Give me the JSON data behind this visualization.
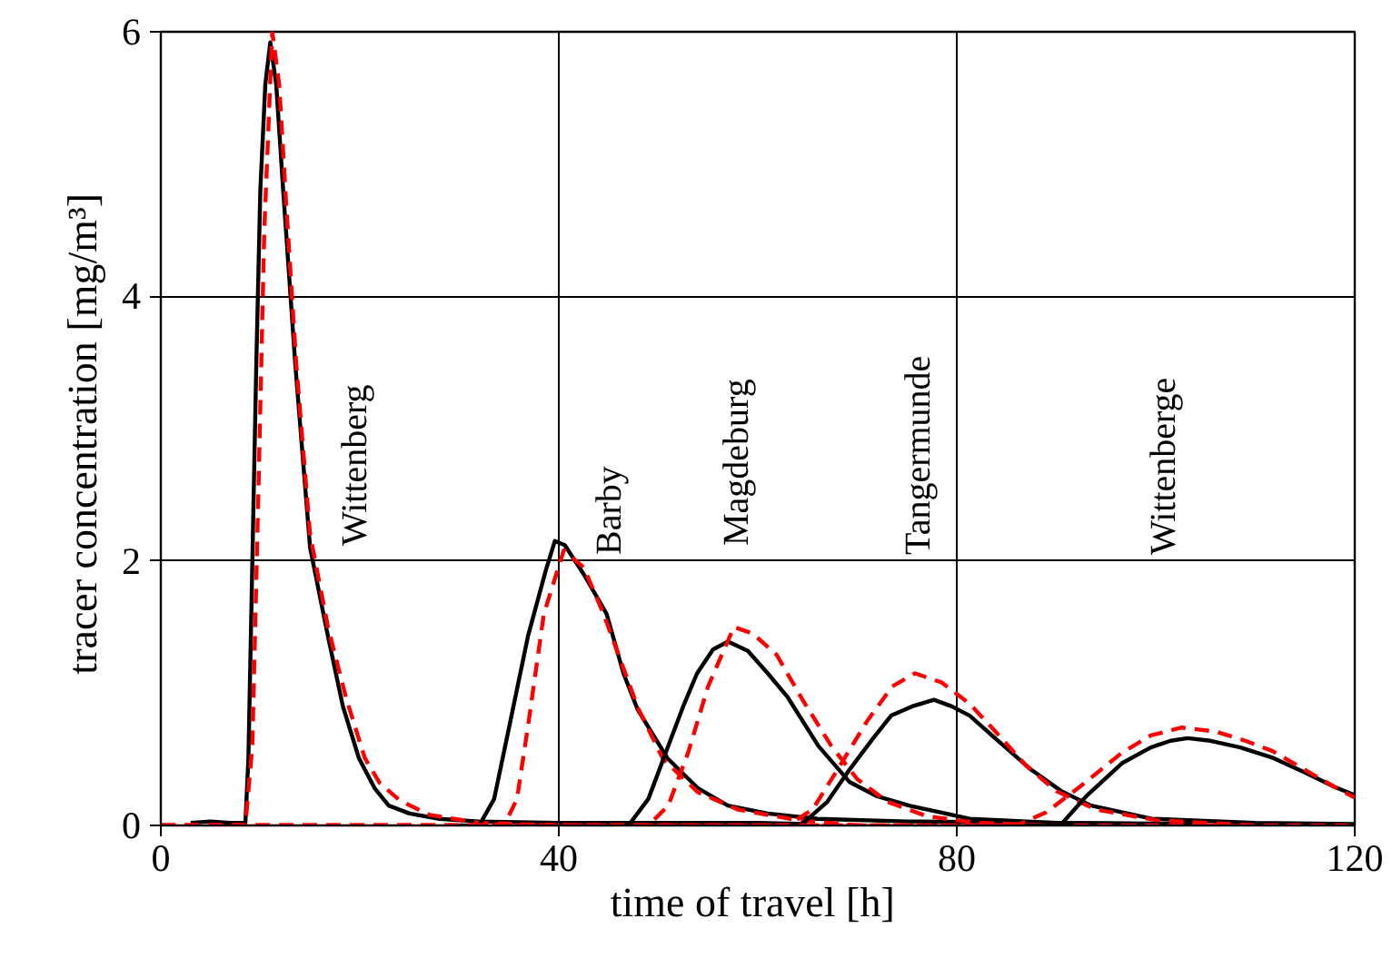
{
  "chart_data": {
    "type": "line",
    "xlabel": "time of travel  [h]",
    "ylabel": "tracer concentration  [mg/m³]",
    "xlim": [
      0,
      120
    ],
    "ylim": [
      0,
      6
    ],
    "xticks": [
      0,
      40,
      80,
      120
    ],
    "yticks": [
      0,
      2,
      4,
      6
    ],
    "grid": true,
    "marker": "none",
    "series": [
      {
        "color": "#000000",
        "line_style": "solid",
        "x": [
          3,
          5,
          7,
          8.5,
          8.8,
          9.2,
          9.6,
          10.0,
          10.5,
          11.0,
          11.6,
          12.3,
          13.5,
          15.0,
          16.8,
          18.3,
          19.9,
          21.5,
          22.9,
          25,
          28,
          32,
          40,
          50,
          60,
          65
        ],
        "values": [
          0.02,
          0.03,
          0.02,
          0.02,
          0.5,
          2.0,
          3.5,
          4.8,
          5.6,
          5.92,
          5.6,
          4.8,
          3.5,
          2.1,
          1.43,
          0.9,
          0.51,
          0.28,
          0.15,
          0.09,
          0.05,
          0.03,
          0.02,
          0.02,
          0.02,
          0.01
        ]
      },
      {
        "color": "#ff0000",
        "line_style": "dashed",
        "x": [
          0,
          8.5,
          9.2,
          9.8,
          10.4,
          11.2,
          11.9,
          12.6,
          13.6,
          15.0,
          16.8,
          18.6,
          20.5,
          22,
          24,
          27,
          32,
          40,
          60,
          120
        ],
        "values": [
          0,
          0,
          0.6,
          2.5,
          4.5,
          6.0,
          5.6,
          4.7,
          3.5,
          2.2,
          1.5,
          0.97,
          0.51,
          0.32,
          0.19,
          0.08,
          0.02,
          0,
          0,
          0
        ]
      },
      {
        "color": "#000000",
        "line_style": "solid",
        "x": [
          30,
          32,
          33.5,
          35,
          36.9,
          38.7,
          39.6,
          40.6,
          42.5,
          44.8,
          46.5,
          47.9,
          50.9,
          54,
          57,
          61,
          66,
          75,
          90,
          100
        ],
        "values": [
          0,
          0,
          0.2,
          0.74,
          1.43,
          1.93,
          2.15,
          2.12,
          1.9,
          1.6,
          1.15,
          0.88,
          0.51,
          0.28,
          0.15,
          0.09,
          0.05,
          0.03,
          0.02,
          0.01
        ]
      },
      {
        "color": "#ff0000",
        "line_style": "dashed",
        "x": [
          0,
          34.5,
          35.8,
          37,
          38.5,
          40.5,
          42.5,
          44.5,
          46,
          48,
          50.5,
          54,
          58,
          64,
          70,
          120
        ],
        "values": [
          0,
          0,
          0.2,
          0.8,
          1.6,
          2.08,
          1.95,
          1.6,
          1.29,
          0.88,
          0.5,
          0.25,
          0.12,
          0.04,
          0,
          0
        ]
      },
      {
        "color": "#000000",
        "line_style": "solid",
        "x": [
          45,
          47,
          49,
          51,
          52.5,
          53.9,
          55.5,
          57,
          59,
          61,
          63,
          66.1,
          69.2,
          72,
          75.2,
          81.3,
          90,
          105
        ],
        "values": [
          0,
          0,
          0.2,
          0.6,
          0.9,
          1.15,
          1.33,
          1.39,
          1.32,
          1.15,
          0.97,
          0.6,
          0.33,
          0.22,
          0.15,
          0.05,
          0.02,
          0.01
        ]
      },
      {
        "color": "#ff0000",
        "line_style": "dashed",
        "x": [
          0,
          49,
          51,
          53,
          55,
          57.6,
          59.5,
          61.9,
          64.5,
          67.4,
          70,
          73,
          77,
          82,
          90,
          120
        ],
        "values": [
          0,
          0,
          0.15,
          0.55,
          1.05,
          1.5,
          1.45,
          1.29,
          0.95,
          0.6,
          0.35,
          0.18,
          0.07,
          0.02,
          0,
          0
        ]
      },
      {
        "color": "#000000",
        "line_style": "solid",
        "x": [
          62,
          64.3,
          67,
          69.2,
          71.5,
          73.4,
          75.5,
          77.7,
          79.5,
          81.3,
          84,
          87.5,
          90.5,
          93.5,
          99.6,
          110,
          120
        ],
        "values": [
          0,
          0,
          0.18,
          0.42,
          0.65,
          0.83,
          0.9,
          0.95,
          0.9,
          0.83,
          0.65,
          0.42,
          0.26,
          0.15,
          0.05,
          0.02,
          0.01
        ]
      },
      {
        "color": "#ff0000",
        "line_style": "dashed",
        "x": [
          0,
          63,
          65.5,
          68,
          71,
          73.5,
          75.8,
          78.5,
          81.3,
          84,
          87,
          90,
          94,
          100,
          110,
          120
        ],
        "values": [
          0,
          0,
          0.12,
          0.42,
          0.79,
          1.05,
          1.15,
          1.08,
          0.92,
          0.7,
          0.45,
          0.26,
          0.12,
          0.04,
          0,
          0
        ]
      },
      {
        "color": "#000000",
        "line_style": "solid",
        "x": [
          86,
          90.4,
          93,
          96.6,
          99.5,
          101.5,
          103.2,
          105.5,
          108.5,
          111.8,
          115,
          118,
          120
        ],
        "values": [
          0,
          0,
          0.22,
          0.47,
          0.59,
          0.64,
          0.66,
          0.64,
          0.59,
          0.51,
          0.4,
          0.29,
          0.23
        ]
      },
      {
        "color": "#ff0000",
        "line_style": "dashed",
        "x": [
          0,
          86,
          89,
          92.5,
          96.6,
          99.5,
          102.6,
          106,
          109,
          111.8,
          115,
          118,
          120
        ],
        "values": [
          0,
          0,
          0.1,
          0.3,
          0.55,
          0.68,
          0.74,
          0.71,
          0.64,
          0.56,
          0.42,
          0.29,
          0.21
        ]
      }
    ],
    "annotations": [
      "Wittenberg",
      "Barby",
      "Magdeburg",
      "Tangermunde",
      "Wittenberge"
    ]
  }
}
